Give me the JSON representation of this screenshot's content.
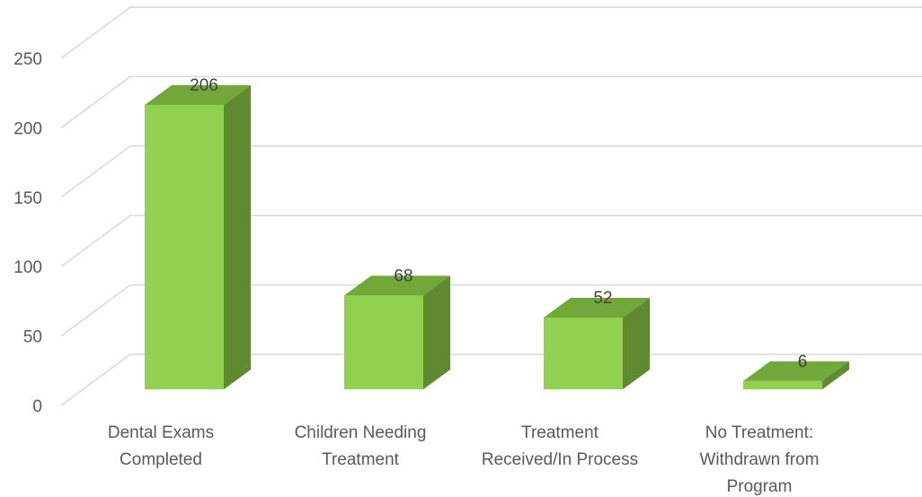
{
  "chart_data": {
    "type": "bar",
    "title": "",
    "xlabel": "",
    "ylabel": "",
    "categories": [
      [
        "Dental Exams",
        "Completed"
      ],
      [
        "Children Needing",
        "Treatment"
      ],
      [
        "Treatment",
        "Received/In Process"
      ],
      [
        "No Treatment:",
        "Withdrawn from",
        "Program"
      ]
    ],
    "values": [
      206,
      68,
      52,
      6
    ],
    "ylim": [
      0,
      250
    ],
    "yticks": [
      0,
      50,
      100,
      150,
      200,
      250
    ],
    "grid": true,
    "legend": "none",
    "colors": {
      "front": "#92d050",
      "top": "#72a83a",
      "side": "#5f8a30"
    }
  }
}
